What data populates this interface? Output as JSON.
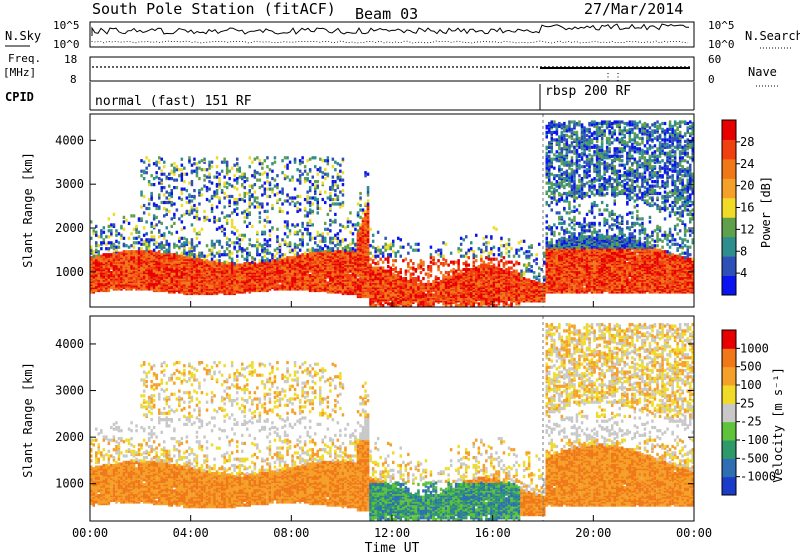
{
  "header": {
    "station": "South Pole Station (fitACF)",
    "beam": "Beam 03",
    "date": "27/Mar/2014"
  },
  "status_panel": {
    "nsky_label": "N.Sky",
    "nsearch_label": "N.Search",
    "nsky_ticks": [
      "10^5",
      "10^0"
    ],
    "nsearch_ticks": [
      "10^5",
      "10^0"
    ],
    "freq_label": "Freq.",
    "freq_unit": "[MHz]",
    "freq_ticks": [
      "18",
      "8"
    ],
    "nave_label": "Nave",
    "nave_ticks": [
      "60",
      "0"
    ],
    "cpid_label": "CPID",
    "cpid_segments": [
      {
        "label": "normal (fast) 151 RF",
        "start_hour": 0
      },
      {
        "label": "rbsp 200 RF",
        "start_hour": 18
      }
    ]
  },
  "chart_data": [
    {
      "type": "heatmap",
      "name": "power",
      "ylabel": "Slant Range [km]",
      "y_ticks": [
        "1000",
        "2000",
        "3000",
        "4000"
      ],
      "ylim": [
        200,
        4600
      ],
      "xlim": [
        0,
        24
      ],
      "colorbar": {
        "label": "Power [dB]",
        "ticks": [
          "4",
          "8",
          "12",
          "16",
          "20",
          "24",
          "28"
        ],
        "colors": [
          "#0a14f0",
          "#2f4fb8",
          "#2e8e8e",
          "#5fa04a",
          "#f0dc28",
          "#f5a028",
          "#f07818",
          "#f04010",
          "#e80000"
        ]
      }
    },
    {
      "type": "heatmap",
      "name": "velocity",
      "ylabel": "Slant Range [km]",
      "y_ticks": [
        "1000",
        "2000",
        "3000",
        "4000"
      ],
      "ylim": [
        200,
        4600
      ],
      "xlim": [
        0,
        24
      ],
      "xlabel": "Time UT",
      "x_ticks": [
        "00:00",
        "04:00",
        "08:00",
        "12:00",
        "16:00",
        "20:00",
        "00:00"
      ],
      "colorbar": {
        "label": "Velocity [m s⁻¹]",
        "ticks": [
          "1000",
          "500",
          "100",
          "25",
          "-25",
          "-100",
          "-500",
          "-1000"
        ],
        "colors": [
          "#1a3cc8",
          "#2e6fb4",
          "#2e9a6a",
          "#5ec23a",
          "#c8c8c8",
          "#f0dc28",
          "#f5a028",
          "#f07818",
          "#e80000"
        ]
      }
    }
  ]
}
